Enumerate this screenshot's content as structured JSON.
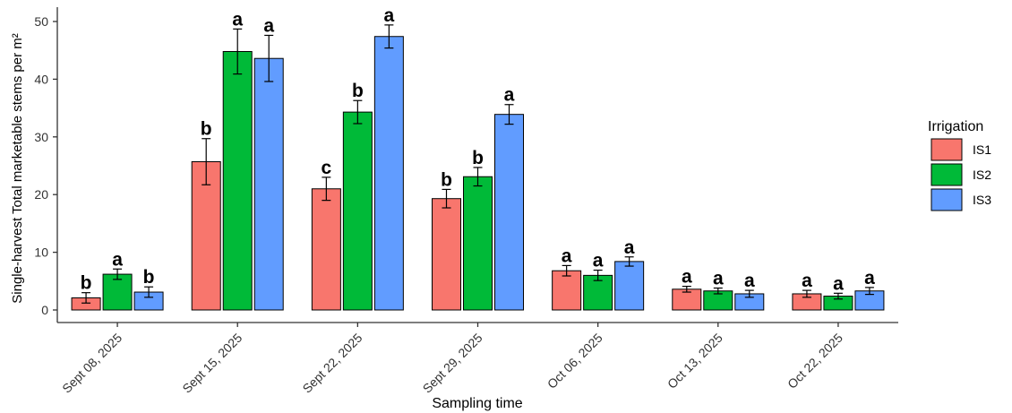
{
  "chart_data": {
    "type": "bar",
    "xlabel": "Sampling time",
    "ylabel": "Single-harvest Total marketable stems per m²",
    "ylim": [
      0,
      50
    ],
    "yticks": [
      0,
      10,
      20,
      30,
      40,
      50
    ],
    "grid": false,
    "legend": {
      "title": "Irrigation",
      "placement": "right"
    },
    "categories": [
      "Sept 08, 2025",
      "Sept 15, 2025",
      "Sept 22, 2025",
      "Sept 29, 2025",
      "Oct 06, 2025",
      "Oct 13, 2025",
      "Oct 22, 2025"
    ],
    "series": [
      {
        "name": "IS1",
        "color": "#F8766D",
        "values": [
          2.1,
          25.7,
          21.0,
          19.3,
          6.8,
          3.6,
          2.8
        ],
        "errors": [
          0.9,
          4.0,
          2.0,
          1.6,
          0.9,
          0.5,
          0.6
        ],
        "letters": [
          "b",
          "b",
          "c",
          "b",
          "a",
          "a",
          "a"
        ]
      },
      {
        "name": "IS2",
        "color": "#00BA38",
        "values": [
          6.2,
          44.8,
          34.3,
          23.1,
          6.0,
          3.3,
          2.4
        ],
        "errors": [
          0.9,
          3.9,
          2.0,
          1.6,
          0.9,
          0.5,
          0.5
        ],
        "letters": [
          "a",
          "a",
          "b",
          "b",
          "a",
          "a",
          "a"
        ]
      },
      {
        "name": "IS3",
        "color": "#619CFF",
        "values": [
          3.1,
          43.6,
          47.4,
          33.9,
          8.4,
          2.8,
          3.3
        ],
        "errors": [
          0.9,
          4.0,
          2.0,
          1.7,
          0.8,
          0.6,
          0.6
        ],
        "letters": [
          "b",
          "a",
          "a",
          "a",
          "a",
          "a",
          "a"
        ]
      }
    ]
  }
}
